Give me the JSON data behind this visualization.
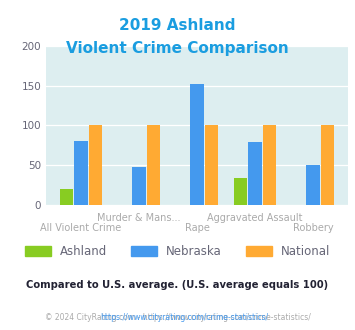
{
  "title_line1": "2019 Ashland",
  "title_line2": "Violent Crime Comparison",
  "title_color": "#1a9de0",
  "categories": [
    "All Violent Crime",
    "Murder & Mans...",
    "Rape",
    "Aggravated Assault",
    "Robbery"
  ],
  "ashland": [
    20,
    0,
    0,
    33,
    0
  ],
  "nebraska": [
    80,
    48,
    152,
    79,
    50
  ],
  "national": [
    100,
    100,
    100,
    100,
    100
  ],
  "ashland_color": "#88cc22",
  "nebraska_color": "#4499ee",
  "national_color": "#ffaa33",
  "ylim": [
    0,
    200
  ],
  "yticks": [
    0,
    50,
    100,
    150,
    200
  ],
  "bg_color": "#ddeef0",
  "legend_text_color": "#666677",
  "subtitle_text": "Compared to U.S. average. (U.S. average equals 100)",
  "subtitle_color": "#222233",
  "footer_text": "© 2024 CityRating.com - https://www.cityrating.com/crime-statistics/",
  "footer_color": "#aaaaaa",
  "footer_link_color": "#4499ee",
  "xlabel_color": "#aaaaaa"
}
